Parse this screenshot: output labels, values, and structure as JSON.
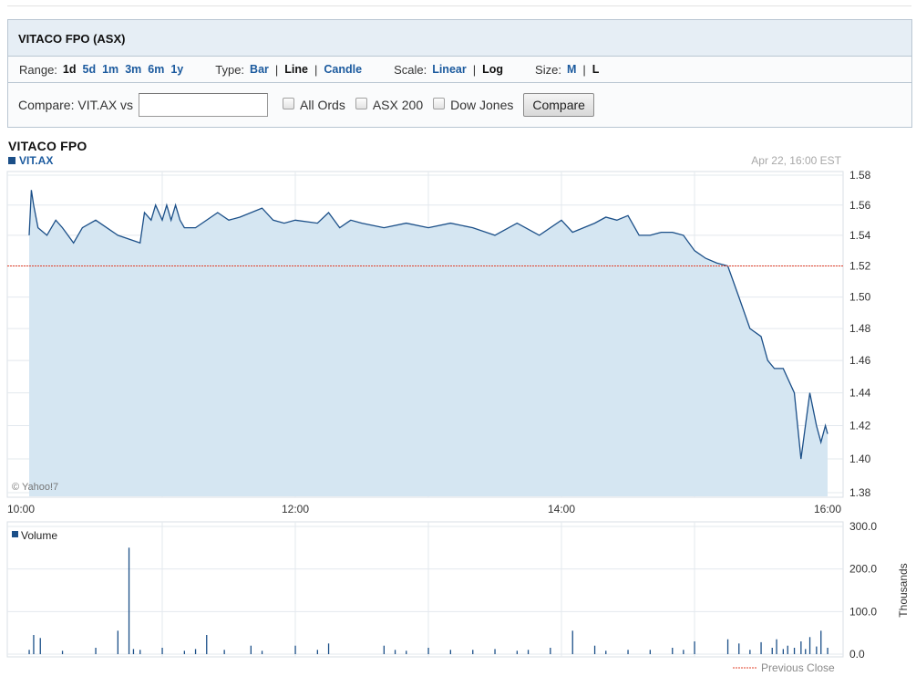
{
  "header": {
    "title": "VITACO FPO (ASX)"
  },
  "controls": {
    "range": {
      "label": "Range:",
      "options": [
        "1d",
        "5d",
        "1m",
        "3m",
        "6m",
        "1y"
      ],
      "selected": "1d"
    },
    "type": {
      "label": "Type:",
      "options": [
        "Bar",
        "Line",
        "Candle"
      ],
      "selected": "Line"
    },
    "scale": {
      "label": "Scale:",
      "options": [
        "Linear",
        "Log"
      ],
      "selected": "Log"
    },
    "size": {
      "label": "Size:",
      "options": [
        "M",
        "L"
      ],
      "selected": "L"
    }
  },
  "compare": {
    "label": "Compare: VIT.AX vs",
    "input_value": "",
    "checkboxes": [
      "All Ords",
      "ASX 200",
      "Dow Jones"
    ],
    "button_label": "Compare"
  },
  "colors": {
    "line": "#1b4f88",
    "fill": "#d5e6f2",
    "prev_close": "#e0402a",
    "volume": "#1b4f88",
    "grid": "#e3e8ee"
  },
  "chart_data": [
    {
      "type": "area",
      "title": "VITACO FPO",
      "symbol": "VIT.AX",
      "timestamp": "Apr 22, 16:00 EST",
      "watermark": "© Yahoo!7",
      "xlabel": "",
      "ylabel": "",
      "x_ticks": [
        "10:00",
        "12:00",
        "14:00",
        "16:00"
      ],
      "y_ticks": [
        1.38,
        1.4,
        1.42,
        1.44,
        1.46,
        1.48,
        1.5,
        1.52,
        1.54,
        1.56,
        1.58
      ],
      "ylim": [
        1.38,
        1.58
      ],
      "scale": "log",
      "grid": true,
      "previous_close": 1.52,
      "x": [
        "10:00",
        "10:01",
        "10:02",
        "10:04",
        "10:08",
        "10:12",
        "10:15",
        "10:20",
        "10:24",
        "10:30",
        "10:40",
        "10:50",
        "10:52",
        "10:55",
        "10:57",
        "11:00",
        "11:02",
        "11:04",
        "11:06",
        "11:08",
        "11:10",
        "11:15",
        "11:25",
        "11:30",
        "11:35",
        "11:45",
        "11:50",
        "11:55",
        "12:00",
        "12:10",
        "12:15",
        "12:20",
        "12:25",
        "12:30",
        "12:40",
        "12:50",
        "13:00",
        "13:10",
        "13:20",
        "13:30",
        "13:40",
        "13:50",
        "14:00",
        "14:05",
        "14:10",
        "14:15",
        "14:20",
        "14:25",
        "14:30",
        "14:35",
        "14:40",
        "14:45",
        "14:50",
        "14:55",
        "15:00",
        "15:05",
        "15:10",
        "15:15",
        "15:20",
        "15:25",
        "15:30",
        "15:33",
        "15:36",
        "15:40",
        "15:45",
        "15:48",
        "15:52",
        "15:55",
        "15:57",
        "15:59",
        "16:00"
      ],
      "series": [
        {
          "values": [
            1.54,
            1.57,
            1.56,
            1.545,
            1.54,
            1.55,
            1.545,
            1.535,
            1.545,
            1.55,
            1.54,
            1.535,
            1.555,
            1.55,
            1.56,
            1.55,
            1.56,
            1.55,
            1.56,
            1.55,
            1.545,
            1.545,
            1.555,
            1.55,
            1.552,
            1.558,
            1.55,
            1.548,
            1.55,
            1.548,
            1.555,
            1.545,
            1.55,
            1.548,
            1.545,
            1.548,
            1.545,
            1.548,
            1.545,
            1.54,
            1.548,
            1.54,
            1.55,
            1.542,
            1.545,
            1.548,
            1.552,
            1.55,
            1.553,
            1.54,
            1.54,
            1.542,
            1.542,
            1.54,
            1.53,
            1.525,
            1.522,
            1.52,
            1.5,
            1.48,
            1.475,
            1.46,
            1.455,
            1.455,
            1.44,
            1.4,
            1.44,
            1.42,
            1.41,
            1.42,
            1.415
          ]
        }
      ]
    },
    {
      "type": "bar",
      "title": "Volume",
      "ylabel": "Thousands",
      "y_ticks": [
        "0.0",
        "100.0",
        "200.0",
        "300.0"
      ],
      "ylim": [
        0,
        300
      ],
      "legend": "Previous Close",
      "x": [
        "10:00",
        "10:02",
        "10:05",
        "10:15",
        "10:30",
        "10:40",
        "10:45",
        "10:47",
        "10:50",
        "11:00",
        "11:10",
        "11:15",
        "11:20",
        "11:28",
        "11:40",
        "11:45",
        "12:00",
        "12:10",
        "12:15",
        "12:40",
        "12:45",
        "12:50",
        "13:00",
        "13:10",
        "13:20",
        "13:30",
        "13:40",
        "13:45",
        "13:55",
        "14:05",
        "14:15",
        "14:20",
        "14:30",
        "14:40",
        "14:50",
        "14:55",
        "15:00",
        "15:15",
        "15:20",
        "15:25",
        "15:30",
        "15:35",
        "15:37",
        "15:40",
        "15:42",
        "15:45",
        "15:48",
        "15:50",
        "15:52",
        "15:55",
        "15:57",
        "16:00"
      ],
      "values": [
        10,
        45,
        38,
        8,
        15,
        55,
        250,
        12,
        10,
        15,
        8,
        12,
        45,
        10,
        20,
        8,
        20,
        10,
        25,
        20,
        10,
        8,
        15,
        10,
        10,
        12,
        8,
        10,
        15,
        55,
        20,
        8,
        10,
        10,
        15,
        10,
        30,
        35,
        25,
        10,
        28,
        15,
        35,
        12,
        20,
        15,
        30,
        12,
        40,
        18,
        55,
        15
      ]
    }
  ]
}
